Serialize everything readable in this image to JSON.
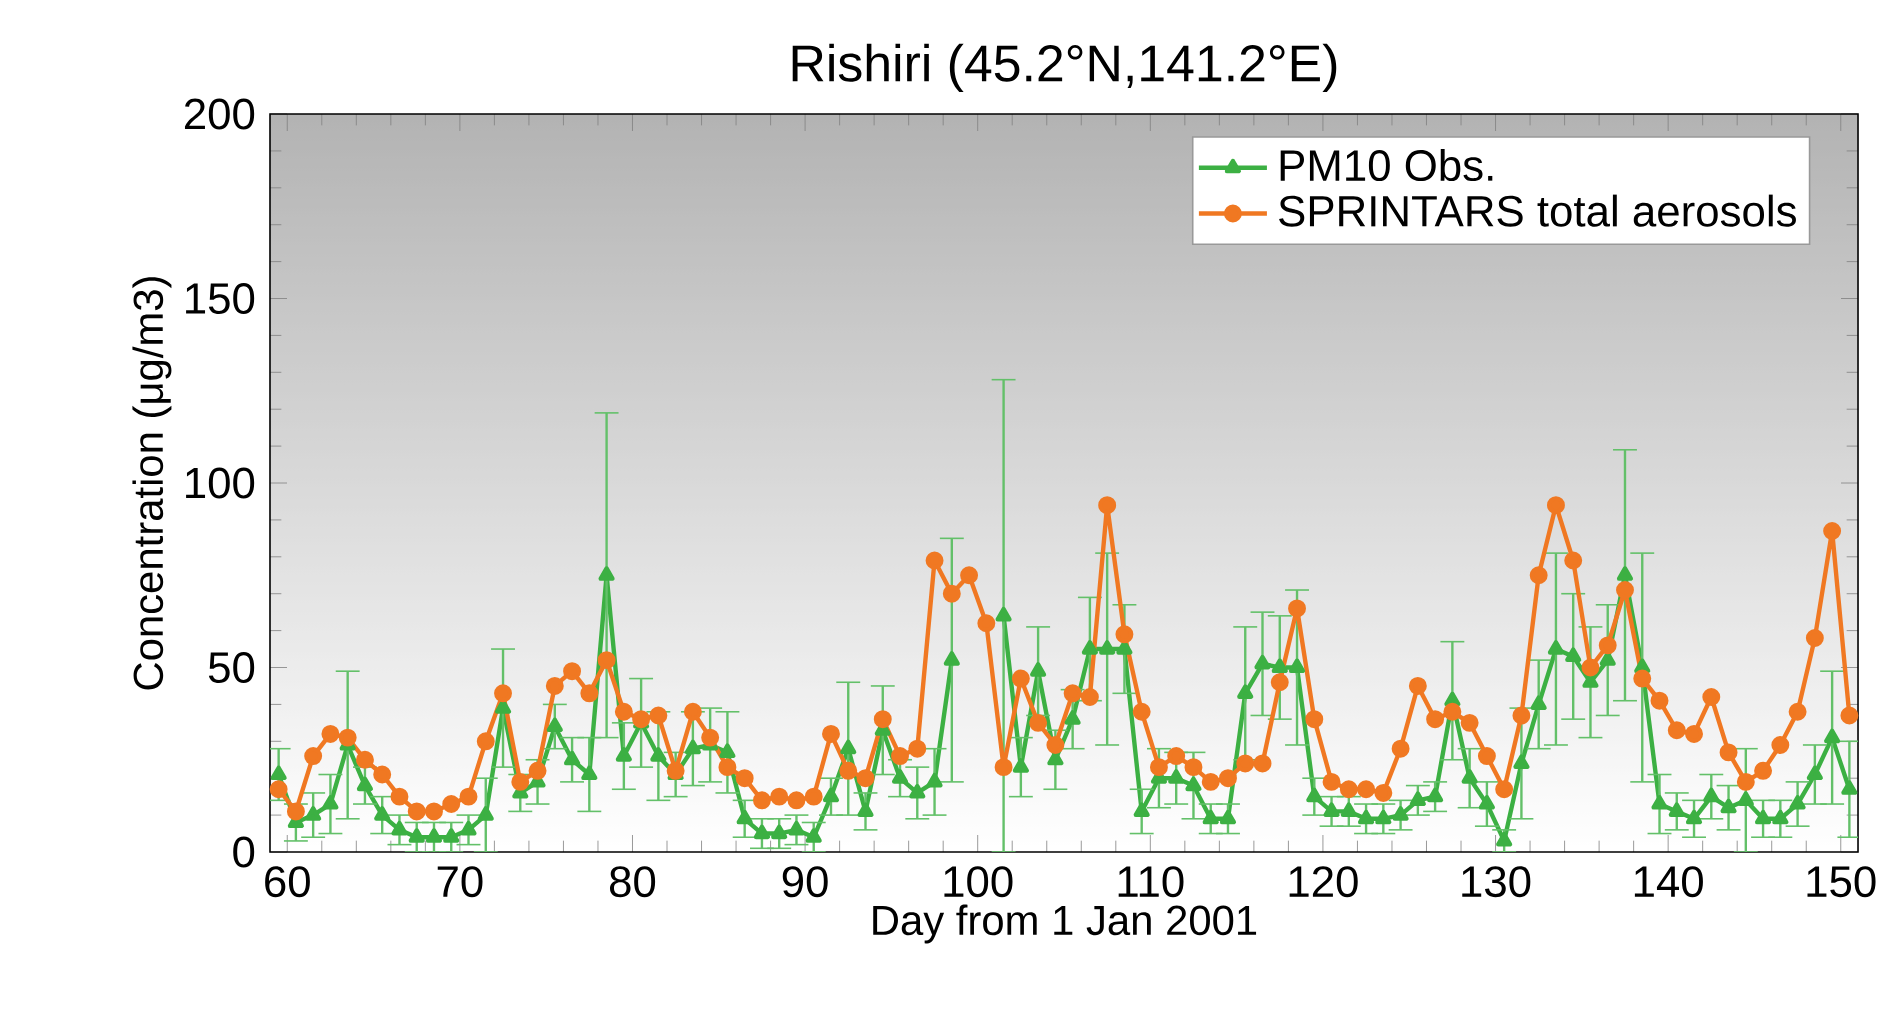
{
  "chart_data": {
    "type": "line",
    "title": "Rishiri (45.2°N,141.2°E)",
    "xlabel": "Day from 1 Jan 2001",
    "ylabel": "Concentration (μg/m3)",
    "x": [
      59.5,
      60.5,
      61.5,
      62.5,
      63.5,
      64.5,
      65.5,
      66.5,
      67.5,
      68.5,
      69.5,
      70.5,
      71.5,
      72.5,
      73.5,
      74.5,
      75.5,
      76.5,
      77.5,
      78.5,
      79.5,
      80.5,
      81.5,
      82.5,
      83.5,
      84.5,
      85.5,
      86.5,
      87.5,
      88.5,
      89.5,
      90.5,
      91.5,
      92.5,
      93.5,
      94.5,
      95.5,
      96.5,
      97.5,
      98.5,
      99.5,
      100.5,
      101.5,
      102.5,
      103.5,
      104.5,
      105.5,
      106.5,
      107.5,
      108.5,
      109.5,
      110.5,
      111.5,
      112.5,
      113.5,
      114.5,
      115.5,
      116.5,
      117.5,
      118.5,
      119.5,
      120.5,
      121.5,
      122.5,
      123.5,
      124.5,
      125.5,
      126.5,
      127.5,
      128.5,
      129.5,
      130.5,
      131.5,
      132.5,
      133.5,
      134.5,
      135.5,
      136.5,
      137.5,
      138.5,
      139.5,
      140.5,
      141.5,
      142.5,
      143.5,
      144.5,
      145.5,
      146.5,
      147.5,
      148.5,
      149.5,
      150.5
    ],
    "series": [
      {
        "name": "PM10 Obs.",
        "color": "#3cb043",
        "marker": "triangle",
        "values": [
          21,
          8,
          10,
          13,
          29,
          18,
          10,
          6,
          4,
          4,
          4,
          6,
          10,
          39,
          16,
          19,
          34,
          25,
          21,
          75,
          26,
          35,
          26,
          21,
          28,
          29,
          27,
          9,
          5,
          5,
          6,
          4,
          15,
          28,
          11,
          33,
          20,
          16,
          19,
          52,
          null,
          null,
          64,
          23,
          49,
          25,
          36,
          55,
          55,
          55,
          11,
          20,
          20,
          18,
          9,
          9,
          43,
          51,
          50,
          50,
          15,
          11,
          11,
          9,
          9,
          10,
          14,
          15,
          41,
          20,
          13,
          3,
          24,
          40,
          55,
          53,
          46,
          52,
          75,
          50,
          13,
          11,
          9,
          15,
          12,
          14,
          9,
          9,
          13,
          21,
          31,
          17
        ],
        "errors": [
          7,
          5,
          6,
          8,
          20,
          5,
          5,
          4,
          4,
          4,
          4,
          4,
          10,
          16,
          5,
          6,
          6,
          6,
          10,
          44,
          9,
          12,
          12,
          6,
          10,
          10,
          11,
          5,
          4,
          4,
          4,
          4,
          5,
          18,
          5,
          12,
          5,
          7,
          9,
          33,
          null,
          null,
          64,
          8,
          12,
          8,
          8,
          14,
          26,
          12,
          6,
          8,
          7,
          9,
          4,
          4,
          18,
          14,
          14,
          21,
          5,
          4,
          4,
          4,
          4,
          4,
          4,
          4,
          16,
          8,
          6,
          3,
          15,
          12,
          26,
          17,
          15,
          15,
          34,
          31,
          8,
          5,
          5,
          6,
          6,
          14,
          5,
          5,
          6,
          8,
          18,
          13
        ]
      },
      {
        "name": "SPRINTARS total aerosols",
        "color": "#f07822",
        "marker": "circle",
        "values": [
          17,
          11,
          26,
          32,
          31,
          25,
          21,
          15,
          11,
          11,
          13,
          15,
          30,
          43,
          19,
          22,
          45,
          49,
          43,
          52,
          38,
          36,
          37,
          22,
          38,
          31,
          23,
          20,
          14,
          15,
          14,
          15,
          32,
          22,
          20,
          36,
          26,
          28,
          79,
          70,
          75,
          62,
          23,
          47,
          35,
          29,
          43,
          42,
          94,
          59,
          38,
          23,
          26,
          23,
          19,
          20,
          24,
          24,
          46,
          66,
          36,
          19,
          17,
          17,
          16,
          28,
          45,
          36,
          38,
          35,
          26,
          17,
          37,
          75,
          94,
          79,
          50,
          56,
          71,
          47,
          41,
          33,
          32,
          42,
          27,
          19,
          22,
          29,
          38,
          58,
          87,
          37
        ]
      }
    ],
    "xlim": [
      59,
      151
    ],
    "xticks": [
      60,
      70,
      80,
      90,
      100,
      110,
      120,
      130,
      140,
      150
    ],
    "ylim": [
      0,
      200
    ],
    "yticks": [
      0,
      50,
      100,
      150,
      200
    ],
    "legend": "top right",
    "line_style": "solid"
  }
}
